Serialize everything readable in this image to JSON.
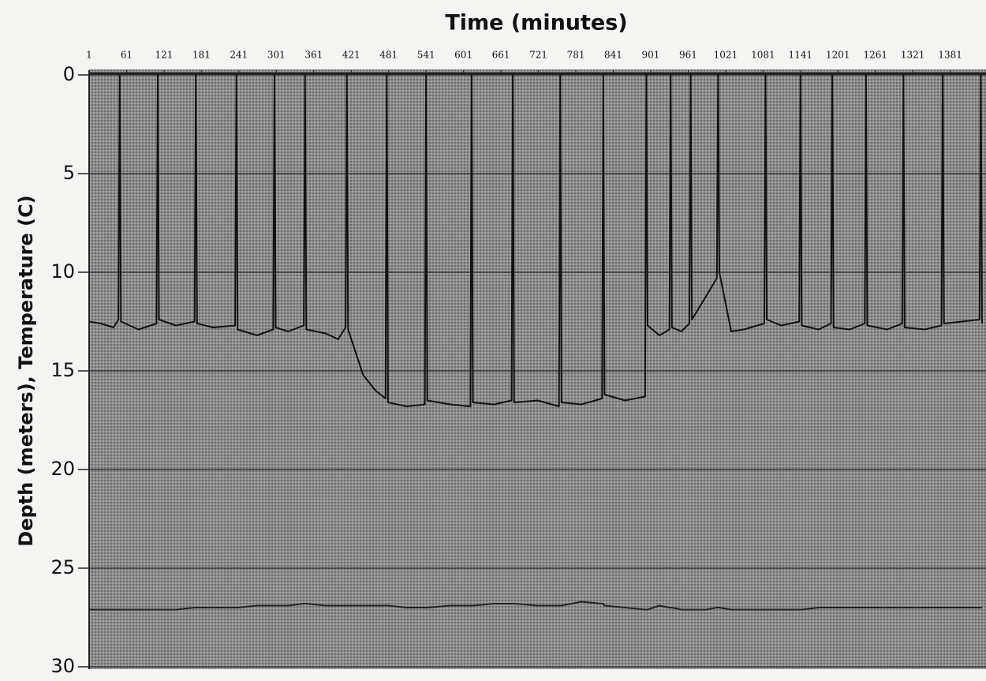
{
  "chart_data": {
    "type": "line",
    "title": "Time (minutes)",
    "y_label": "Depth (meters), Temperature (C)",
    "x": [
      1,
      20,
      40,
      48,
      50,
      52,
      80,
      109,
      111,
      113,
      140,
      170,
      172,
      174,
      200,
      235,
      237,
      239,
      270,
      296,
      298,
      300,
      320,
      345,
      347,
      349,
      380,
      400,
      412,
      414,
      416,
      440,
      460,
      476,
      478,
      480,
      510,
      539,
      541,
      543,
      580,
      612,
      614,
      616,
      650,
      678,
      680,
      682,
      720,
      754,
      756,
      758,
      790,
      823,
      825,
      827,
      860,
      892,
      894,
      896,
      915,
      931,
      933,
      935,
      950,
      963,
      965,
      967,
      990,
      1007,
      1009,
      1011,
      1030,
      1050,
      1083,
      1085,
      1087,
      1110,
      1139,
      1141,
      1143,
      1170,
      1190,
      1192,
      1194,
      1220,
      1244,
      1246,
      1248,
      1280,
      1304,
      1306,
      1308,
      1340,
      1367,
      1369,
      1371,
      1400,
      1428,
      1430,
      1432
    ],
    "series": [
      {
        "color": "#111111",
        "values": [
          12.5,
          12.6,
          12.8,
          12.4,
          0,
          12.5,
          12.9,
          12.6,
          0,
          12.4,
          12.7,
          12.5,
          0,
          12.6,
          12.8,
          12.7,
          0,
          12.9,
          13.2,
          12.9,
          0,
          12.8,
          13.0,
          12.7,
          0,
          12.9,
          13.1,
          13.4,
          12.8,
          0,
          12.9,
          15.2,
          16.0,
          16.4,
          0,
          16.6,
          16.8,
          16.7,
          0,
          16.5,
          16.7,
          16.8,
          0,
          16.6,
          16.7,
          16.5,
          0,
          16.6,
          16.5,
          16.8,
          0,
          16.6,
          16.7,
          16.4,
          0,
          16.2,
          16.5,
          16.3,
          0,
          12.7,
          13.2,
          12.9,
          0,
          12.8,
          13.0,
          12.6,
          0,
          12.4,
          11.2,
          10.3,
          0,
          10.0,
          13.0,
          12.9,
          12.6,
          0,
          12.4,
          12.7,
          12.5,
          0,
          12.7,
          12.9,
          12.6,
          0,
          12.8,
          12.9,
          12.6,
          0,
          12.7,
          12.9,
          12.6,
          0,
          12.8,
          12.9,
          12.7,
          0,
          12.6,
          12.5,
          12.4,
          0,
          12.6
        ]
      },
      {
        "color": "#222222",
        "values": [
          27.1,
          27.1,
          27.1,
          27.1,
          27.1,
          27.1,
          27.1,
          27.1,
          27.1,
          27.1,
          27.1,
          27.0,
          27.0,
          27.0,
          27.0,
          27.0,
          27.0,
          27.0,
          26.9,
          26.9,
          26.9,
          26.9,
          26.9,
          26.8,
          26.8,
          26.8,
          26.9,
          26.9,
          26.9,
          26.9,
          26.9,
          26.9,
          26.9,
          26.9,
          26.9,
          26.9,
          27.0,
          27.0,
          27.0,
          27.0,
          26.9,
          26.9,
          26.9,
          26.9,
          26.8,
          26.8,
          26.8,
          26.8,
          26.9,
          26.9,
          26.9,
          26.9,
          26.7,
          26.8,
          26.8,
          26.9,
          27.0,
          27.1,
          27.1,
          27.1,
          26.9,
          27.0,
          27.0,
          27.0,
          27.1,
          27.1,
          27.1,
          27.1,
          27.1,
          27.0,
          27.0,
          27.0,
          27.1,
          27.1,
          27.1,
          27.1,
          27.1,
          27.1,
          27.1,
          27.1,
          27.1,
          27.0,
          27.0,
          27.0,
          27.0,
          27.0,
          27.0,
          27.0,
          27.0,
          27.0,
          27.0,
          27.0,
          27.0,
          27.0,
          27.0,
          27.0,
          27.0,
          27.0,
          27.0,
          27.0,
          27.0
        ]
      }
    ],
    "xlim": [
      1,
      1432
    ],
    "xticks": [
      1,
      61,
      121,
      181,
      241,
      301,
      361,
      421,
      481,
      541,
      601,
      661,
      721,
      781,
      841,
      901,
      961,
      1021,
      1081,
      1141,
      1201,
      1261,
      1321,
      1381
    ],
    "ylim": [
      0,
      30
    ],
    "yticks": [
      0,
      5,
      10,
      15,
      20,
      25,
      30
    ],
    "y_inverted": true,
    "x_axis_top": true,
    "grid": true
  }
}
